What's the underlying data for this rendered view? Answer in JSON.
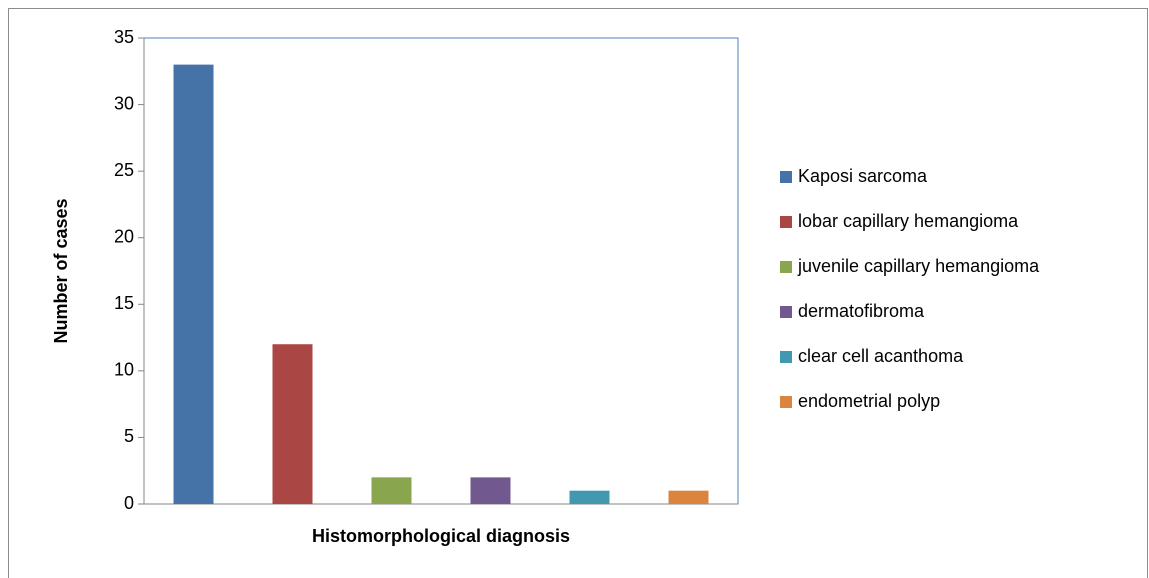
{
  "chart_data": {
    "type": "bar",
    "categories": [
      "Kaposi sarcoma",
      "lobar capillary hemangioma",
      "juvenile capillary hemangioma",
      "dermatofibroma",
      "clear cell acanthoma",
      "endometrial polyp"
    ],
    "values": [
      33,
      12,
      2,
      2,
      1,
      1
    ],
    "colors": [
      "#4572a7",
      "#aa4643",
      "#89a54e",
      "#71588f",
      "#4198af",
      "#db843d"
    ],
    "ylim": [
      0,
      35
    ],
    "yticks": [
      0,
      5,
      10,
      15,
      20,
      25,
      30,
      35
    ],
    "x_label": "Histomorphological diagnosis",
    "y_label": "Number of cases",
    "legend": "right"
  }
}
